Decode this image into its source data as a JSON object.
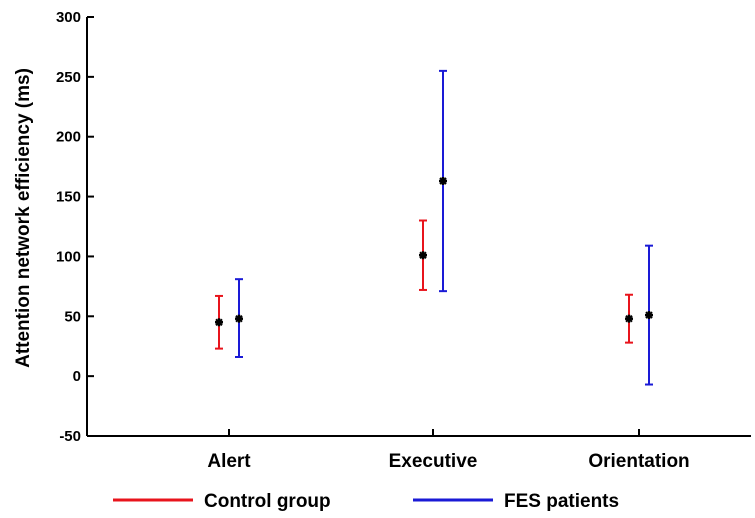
{
  "chart_data": {
    "type": "errorbar",
    "ylabel": "Attention network efficiency (ms)",
    "xlabel": "",
    "title": "",
    "ylim": [
      -50,
      300
    ],
    "yticks": [
      -50,
      0,
      50,
      100,
      150,
      200,
      250,
      300
    ],
    "categories": [
      "Alert",
      "Executive",
      "Orientation"
    ],
    "series": [
      {
        "name": "Control group",
        "color": "#e8141c",
        "values": [
          45,
          101,
          48
        ],
        "lower": [
          23,
          72,
          28
        ],
        "upper": [
          67,
          130,
          68
        ]
      },
      {
        "name": "FES patients",
        "color": "#1a1ad6",
        "values": [
          48,
          163,
          51
        ],
        "lower": [
          16,
          71,
          -7
        ],
        "upper": [
          81,
          255,
          109
        ]
      }
    ],
    "marker_color": "#000000",
    "legend_position": "bottom",
    "grid": false
  }
}
